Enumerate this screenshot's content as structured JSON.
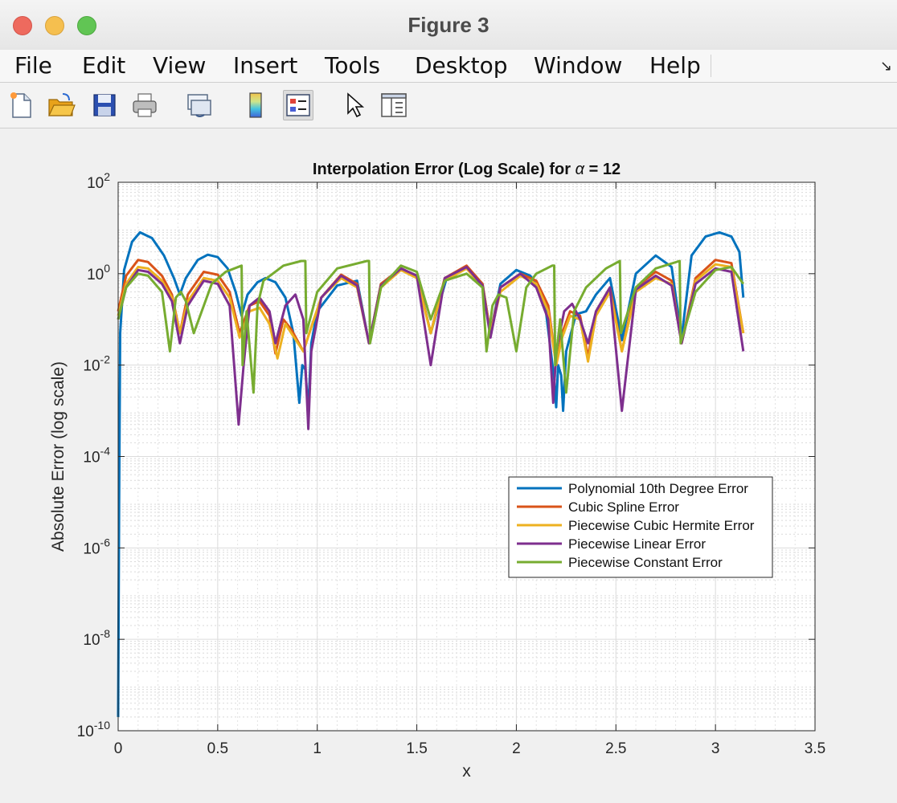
{
  "window": {
    "title": "Figure 3"
  },
  "menu": {
    "items": [
      "File",
      "Edit",
      "View",
      "Insert",
      "Tools",
      "Desktop",
      "Window",
      "Help"
    ],
    "dock_icon": "dock-arrow-icon"
  },
  "toolbar": {
    "buttons": [
      {
        "name": "new-figure-icon"
      },
      {
        "name": "open-file-icon"
      },
      {
        "name": "save-icon"
      },
      {
        "name": "print-icon"
      },
      {
        "name": "link-plot-icon"
      },
      {
        "name": "colorbar-icon"
      },
      {
        "name": "legend-icon",
        "active": true
      },
      {
        "name": "edit-plot-pointer-icon"
      },
      {
        "name": "property-inspector-icon"
      }
    ]
  },
  "colors": {
    "polynomial": "#0072BD",
    "spline": "#D95319",
    "hermite": "#EDB120",
    "linear": "#7E2F8E",
    "constant": "#77AC30"
  },
  "chart_data": {
    "type": "line",
    "title": "Interpolation Error (Log Scale) for α = 12",
    "xlabel": "x",
    "ylabel": "Absolute Error (log scale)",
    "xlim": [
      0,
      3.5
    ],
    "ylim": [
      1e-10,
      100
    ],
    "yscale": "log",
    "grid": true,
    "minor_grid": true,
    "legend_position": "east",
    "xticks": [
      0,
      0.5,
      1,
      1.5,
      2,
      2.5,
      3,
      3.5
    ],
    "xtick_labels": [
      "0",
      "0.5",
      "1",
      "1.5",
      "2",
      "2.5",
      "3",
      "3.5"
    ],
    "yticks": [
      {
        "base": "10",
        "exp": "-10"
      },
      {
        "base": "10",
        "exp": "-8"
      },
      {
        "base": "10",
        "exp": "-6"
      },
      {
        "base": "10",
        "exp": "-4"
      },
      {
        "base": "10",
        "exp": "-2"
      },
      {
        "base": "10",
        "exp": "0"
      },
      {
        "base": "10",
        "exp": "2"
      }
    ],
    "series": [
      {
        "name": "Polynomial 10th Degree Error",
        "color": "#0072BD",
        "points": [
          [
            0.0,
            2e-10
          ],
          [
            0.005,
            1e-05
          ],
          [
            0.01,
            0.05
          ],
          [
            0.03,
            1.2
          ],
          [
            0.07,
            5
          ],
          [
            0.11,
            8
          ],
          [
            0.17,
            6
          ],
          [
            0.23,
            2.5
          ],
          [
            0.28,
            0.8
          ],
          [
            0.31,
            0.35
          ],
          [
            0.34,
            0.8
          ],
          [
            0.4,
            2
          ],
          [
            0.45,
            2.6
          ],
          [
            0.5,
            2.3
          ],
          [
            0.55,
            1.3
          ],
          [
            0.59,
            0.4
          ],
          [
            0.62,
            0.12
          ],
          [
            0.65,
            0.35
          ],
          [
            0.7,
            0.65
          ],
          [
            0.74,
            0.8
          ],
          [
            0.79,
            0.65
          ],
          [
            0.84,
            0.3
          ],
          [
            0.88,
            0.05
          ],
          [
            0.91,
            0.0015
          ],
          [
            0.925,
            0.01
          ],
          [
            0.94,
            0.008
          ],
          [
            0.955,
            0.001
          ],
          [
            0.97,
            0.03
          ],
          [
            1.0,
            0.15
          ],
          [
            1.1,
            0.55
          ],
          [
            1.2,
            0.7
          ],
          [
            1.26,
            0.03
          ],
          [
            1.32,
            0.6
          ],
          [
            1.42,
            1.3
          ],
          [
            1.5,
            0.9
          ],
          [
            1.57,
            0.05
          ],
          [
            1.65,
            0.8
          ],
          [
            1.75,
            1.4
          ],
          [
            1.83,
            0.6
          ],
          [
            1.87,
            0.05
          ],
          [
            1.92,
            0.6
          ],
          [
            2.0,
            1.2
          ],
          [
            2.07,
            0.9
          ],
          [
            2.14,
            0.3
          ],
          [
            2.19,
            0.005
          ],
          [
            2.2,
            0.0012
          ],
          [
            2.21,
            0.01
          ],
          [
            2.225,
            0.006
          ],
          [
            2.235,
            0.001
          ],
          [
            2.25,
            0.02
          ],
          [
            2.3,
            0.13
          ],
          [
            2.35,
            0.15
          ],
          [
            2.4,
            0.35
          ],
          [
            2.47,
            0.8
          ],
          [
            2.53,
            0.035
          ],
          [
            2.6,
            1.0
          ],
          [
            2.7,
            2.5
          ],
          [
            2.78,
            1.4
          ],
          [
            2.83,
            0.04
          ],
          [
            2.88,
            2.5
          ],
          [
            2.95,
            6.5
          ],
          [
            3.02,
            8
          ],
          [
            3.08,
            6.5
          ],
          [
            3.12,
            3
          ],
          [
            3.14,
            0.3
          ]
        ]
      },
      {
        "name": "Cubic Spline Error",
        "color": "#D95319",
        "points": [
          [
            0.0,
            0.15
          ],
          [
            0.04,
            0.9
          ],
          [
            0.1,
            2.0
          ],
          [
            0.15,
            1.8
          ],
          [
            0.22,
            0.9
          ],
          [
            0.27,
            0.35
          ],
          [
            0.31,
            0.05
          ],
          [
            0.35,
            0.35
          ],
          [
            0.43,
            1.1
          ],
          [
            0.5,
            0.95
          ],
          [
            0.56,
            0.4
          ],
          [
            0.61,
            0.05
          ],
          [
            0.66,
            0.2
          ],
          [
            0.71,
            0.25
          ],
          [
            0.76,
            0.12
          ],
          [
            0.79,
            0.018
          ],
          [
            0.83,
            0.1
          ],
          [
            0.87,
            0.06
          ],
          [
            0.93,
            0.02
          ],
          [
            0.96,
            0.05
          ],
          [
            1.02,
            0.3
          ],
          [
            1.12,
            0.95
          ],
          [
            1.2,
            0.6
          ],
          [
            1.26,
            0.03
          ],
          [
            1.32,
            0.6
          ],
          [
            1.42,
            1.3
          ],
          [
            1.5,
            0.9
          ],
          [
            1.57,
            0.05
          ],
          [
            1.64,
            0.8
          ],
          [
            1.75,
            1.5
          ],
          [
            1.83,
            0.6
          ],
          [
            1.87,
            0.05
          ],
          [
            1.92,
            0.5
          ],
          [
            2.02,
            1.0
          ],
          [
            2.1,
            0.7
          ],
          [
            2.16,
            0.2
          ],
          [
            2.2,
            0.01
          ],
          [
            2.23,
            0.05
          ],
          [
            2.27,
            0.15
          ],
          [
            2.32,
            0.12
          ],
          [
            2.36,
            0.015
          ],
          [
            2.4,
            0.15
          ],
          [
            2.47,
            0.5
          ],
          [
            2.53,
            0.02
          ],
          [
            2.6,
            0.5
          ],
          [
            2.7,
            1.1
          ],
          [
            2.78,
            0.7
          ],
          [
            2.83,
            0.03
          ],
          [
            2.9,
            0.8
          ],
          [
            3.0,
            2.0
          ],
          [
            3.08,
            1.7
          ],
          [
            3.14,
            0.05
          ]
        ]
      },
      {
        "name": "Piecewise Cubic Hermite Error",
        "color": "#EDB120",
        "points": [
          [
            0.0,
            0.12
          ],
          [
            0.04,
            0.6
          ],
          [
            0.1,
            1.4
          ],
          [
            0.15,
            1.3
          ],
          [
            0.22,
            0.7
          ],
          [
            0.27,
            0.3
          ],
          [
            0.31,
            0.05
          ],
          [
            0.35,
            0.25
          ],
          [
            0.43,
            0.8
          ],
          [
            0.5,
            0.7
          ],
          [
            0.56,
            0.3
          ],
          [
            0.61,
            0.04
          ],
          [
            0.66,
            0.15
          ],
          [
            0.71,
            0.18
          ],
          [
            0.76,
            0.08
          ],
          [
            0.8,
            0.014
          ],
          [
            0.84,
            0.08
          ],
          [
            0.87,
            0.05
          ],
          [
            0.93,
            0.02
          ],
          [
            0.96,
            0.05
          ],
          [
            1.02,
            0.3
          ],
          [
            1.12,
            0.8
          ],
          [
            1.2,
            0.5
          ],
          [
            1.26,
            0.03
          ],
          [
            1.32,
            0.5
          ],
          [
            1.42,
            1.2
          ],
          [
            1.5,
            0.8
          ],
          [
            1.57,
            0.05
          ],
          [
            1.64,
            0.7
          ],
          [
            1.75,
            1.3
          ],
          [
            1.83,
            0.5
          ],
          [
            1.87,
            0.05
          ],
          [
            1.92,
            0.4
          ],
          [
            2.02,
            0.9
          ],
          [
            2.1,
            0.6
          ],
          [
            2.16,
            0.15
          ],
          [
            2.2,
            0.01
          ],
          [
            2.23,
            0.04
          ],
          [
            2.27,
            0.12
          ],
          [
            2.32,
            0.1
          ],
          [
            2.36,
            0.012
          ],
          [
            2.4,
            0.12
          ],
          [
            2.47,
            0.4
          ],
          [
            2.53,
            0.02
          ],
          [
            2.6,
            0.4
          ],
          [
            2.7,
            0.8
          ],
          [
            2.78,
            0.6
          ],
          [
            2.83,
            0.03
          ],
          [
            2.9,
            0.7
          ],
          [
            3.0,
            1.6
          ],
          [
            3.08,
            1.4
          ],
          [
            3.14,
            0.05
          ]
        ]
      },
      {
        "name": "Piecewise Linear Error",
        "color": "#7E2F8E",
        "points": [
          [
            0.0,
            0.1
          ],
          [
            0.04,
            0.5
          ],
          [
            0.1,
            1.2
          ],
          [
            0.15,
            1.1
          ],
          [
            0.22,
            0.6
          ],
          [
            0.27,
            0.25
          ],
          [
            0.31,
            0.03
          ],
          [
            0.35,
            0.2
          ],
          [
            0.43,
            0.7
          ],
          [
            0.5,
            0.6
          ],
          [
            0.56,
            0.2
          ],
          [
            0.605,
            0.0005
          ],
          [
            0.63,
            0.01
          ],
          [
            0.66,
            0.2
          ],
          [
            0.71,
            0.3
          ],
          [
            0.76,
            0.15
          ],
          [
            0.79,
            0.03
          ],
          [
            0.84,
            0.2
          ],
          [
            0.89,
            0.35
          ],
          [
            0.93,
            0.1
          ],
          [
            0.955,
            0.0004
          ],
          [
            0.97,
            0.02
          ],
          [
            1.02,
            0.3
          ],
          [
            1.12,
            0.9
          ],
          [
            1.2,
            0.55
          ],
          [
            1.26,
            0.03
          ],
          [
            1.32,
            0.55
          ],
          [
            1.42,
            1.3
          ],
          [
            1.5,
            0.9
          ],
          [
            1.57,
            0.01
          ],
          [
            1.64,
            0.8
          ],
          [
            1.75,
            1.4
          ],
          [
            1.83,
            0.55
          ],
          [
            1.87,
            0.04
          ],
          [
            1.92,
            0.5
          ],
          [
            2.02,
            1.0
          ],
          [
            2.1,
            0.5
          ],
          [
            2.16,
            0.1
          ],
          [
            2.185,
            0.0015
          ],
          [
            2.2,
            0.02
          ],
          [
            2.24,
            0.15
          ],
          [
            2.28,
            0.22
          ],
          [
            2.32,
            0.1
          ],
          [
            2.36,
            0.03
          ],
          [
            2.4,
            0.15
          ],
          [
            2.47,
            0.5
          ],
          [
            2.53,
            0.001
          ],
          [
            2.6,
            0.45
          ],
          [
            2.7,
            0.9
          ],
          [
            2.78,
            0.55
          ],
          [
            2.83,
            0.03
          ],
          [
            2.9,
            0.6
          ],
          [
            3.0,
            1.3
          ],
          [
            3.08,
            1.1
          ],
          [
            3.14,
            0.02
          ]
        ]
      },
      {
        "name": "Piecewise Constant Error",
        "color": "#77AC30",
        "points": [
          [
            0.0,
            0.1
          ],
          [
            0.04,
            0.5
          ],
          [
            0.1,
            1.0
          ],
          [
            0.15,
            0.9
          ],
          [
            0.22,
            0.4
          ],
          [
            0.26,
            0.02
          ],
          [
            0.29,
            0.3
          ],
          [
            0.315,
            0.4
          ],
          [
            0.34,
            0.25
          ],
          [
            0.38,
            0.05
          ],
          [
            0.47,
            0.6
          ],
          [
            0.54,
            1.1
          ],
          [
            0.62,
            1.5
          ],
          [
            0.625,
            0.01
          ],
          [
            0.645,
            0.15
          ],
          [
            0.68,
            0.0025
          ],
          [
            0.7,
            0.2
          ],
          [
            0.73,
            0.7
          ],
          [
            0.83,
            1.5
          ],
          [
            0.92,
            1.9
          ],
          [
            0.94,
            1.9
          ],
          [
            0.945,
            0.05
          ],
          [
            1.0,
            0.4
          ],
          [
            1.1,
            1.3
          ],
          [
            1.25,
            1.9
          ],
          [
            1.26,
            1.9
          ],
          [
            1.265,
            0.03
          ],
          [
            1.32,
            0.5
          ],
          [
            1.42,
            1.5
          ],
          [
            1.5,
            1.1
          ],
          [
            1.57,
            0.1
          ],
          [
            1.64,
            0.7
          ],
          [
            1.75,
            1.0
          ],
          [
            1.83,
            0.5
          ],
          [
            1.85,
            0.02
          ],
          [
            1.88,
            0.2
          ],
          [
            1.91,
            0.35
          ],
          [
            1.95,
            0.3
          ],
          [
            2.0,
            0.02
          ],
          [
            2.05,
            0.5
          ],
          [
            2.1,
            1.0
          ],
          [
            2.18,
            1.5
          ],
          [
            2.19,
            1.5
          ],
          [
            2.195,
            0.01
          ],
          [
            2.22,
            0.1
          ],
          [
            2.25,
            0.0025
          ],
          [
            2.29,
            0.15
          ],
          [
            2.35,
            0.5
          ],
          [
            2.45,
            1.3
          ],
          [
            2.52,
            1.9
          ],
          [
            2.525,
            0.05
          ],
          [
            2.6,
            0.5
          ],
          [
            2.7,
            1.3
          ],
          [
            2.82,
            1.9
          ],
          [
            2.825,
            0.03
          ],
          [
            2.9,
            0.4
          ],
          [
            3.0,
            1.2
          ],
          [
            3.08,
            1.4
          ],
          [
            3.14,
            0.6
          ]
        ]
      }
    ]
  }
}
